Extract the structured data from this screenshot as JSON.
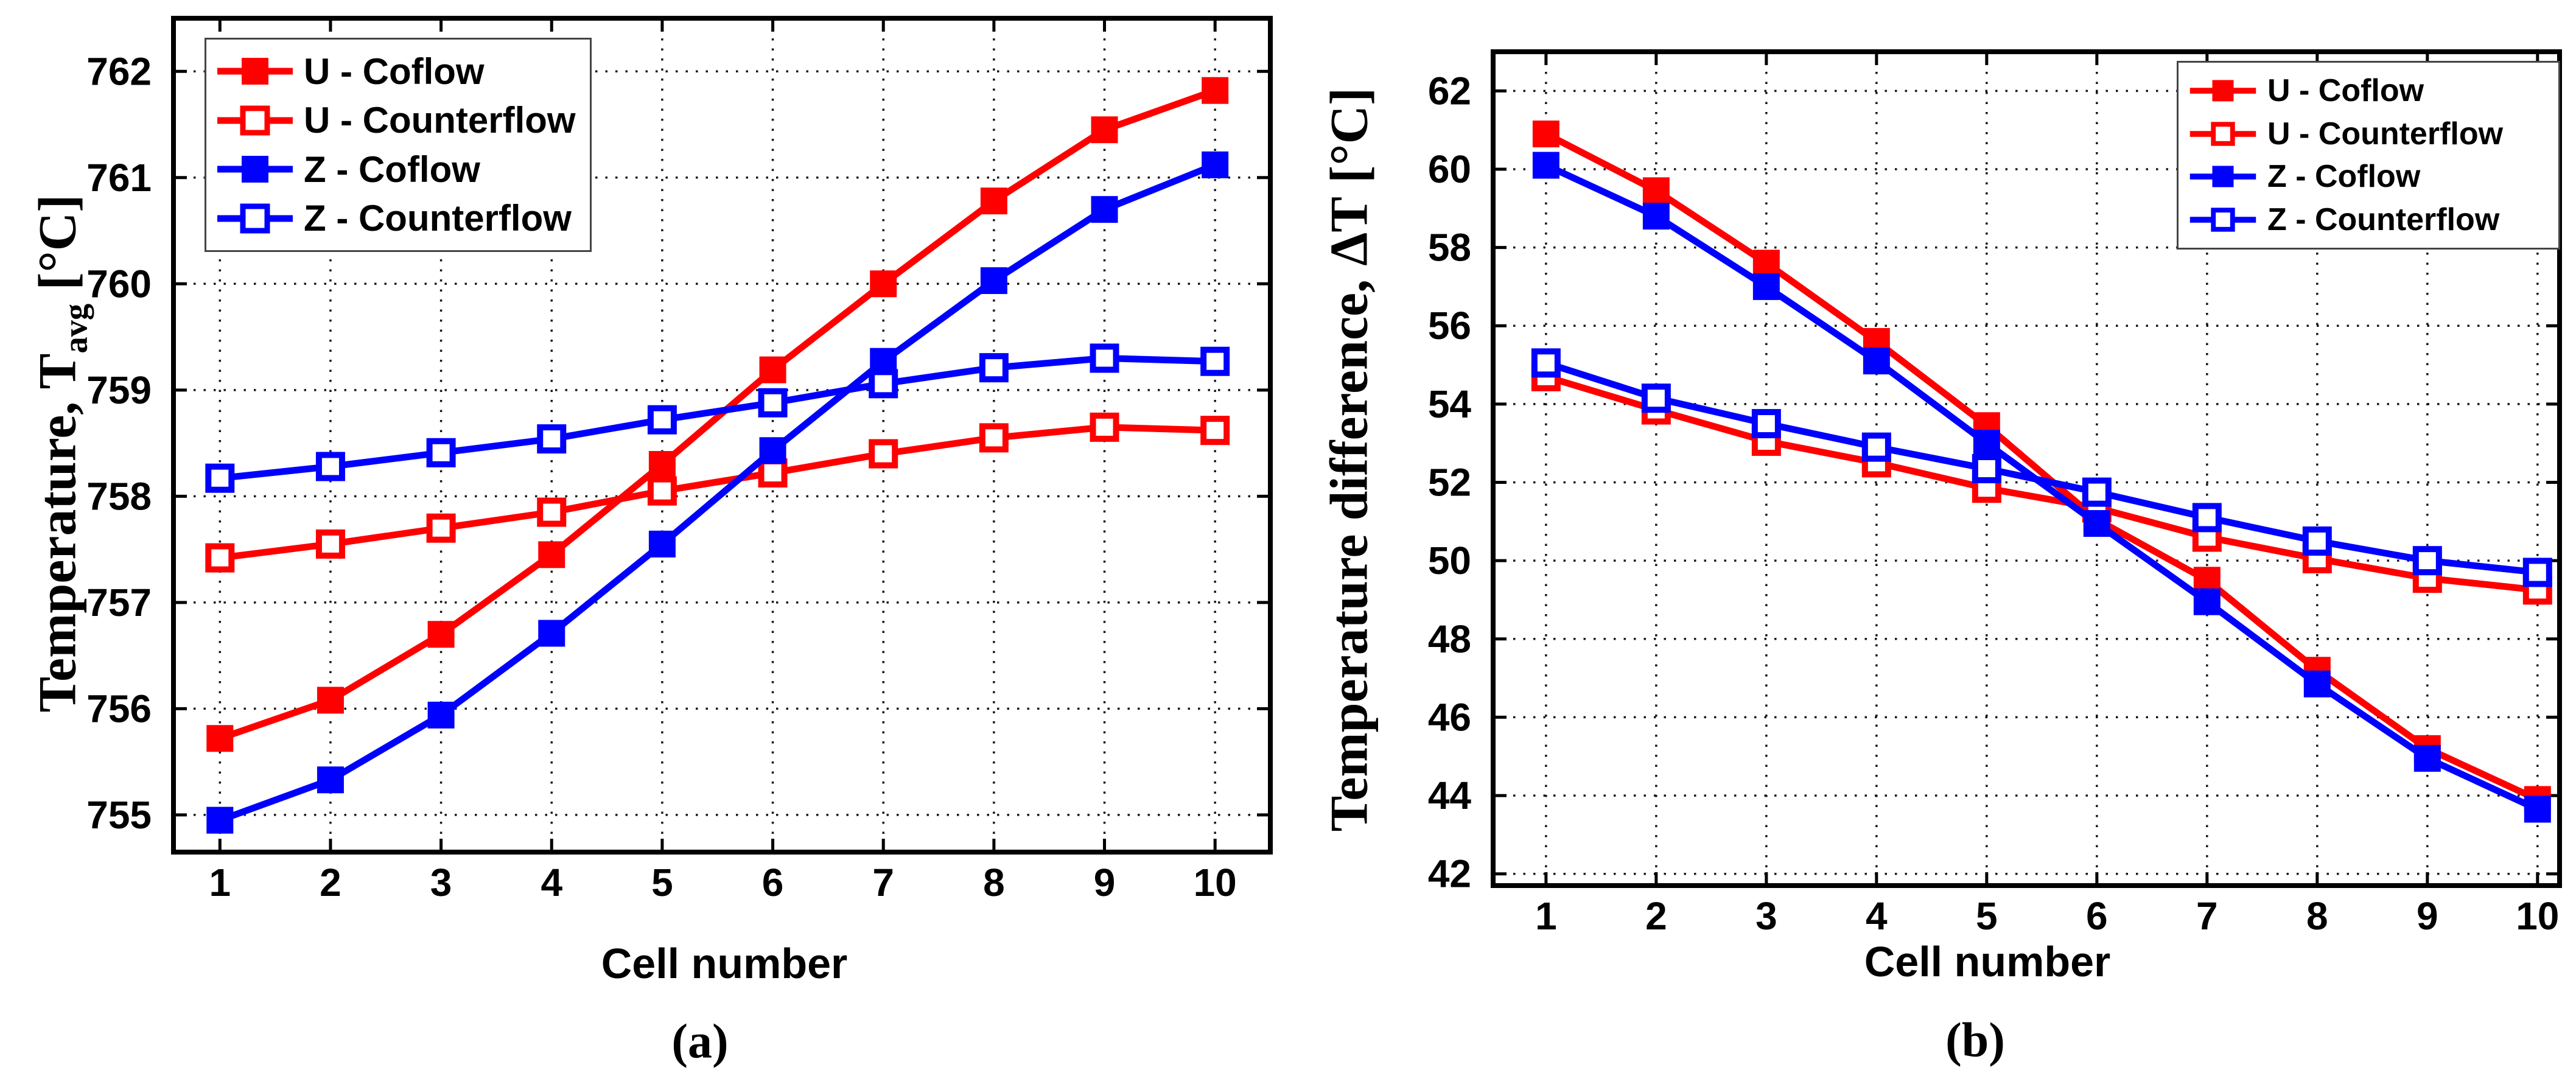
{
  "figure": {
    "background": "#ffffff",
    "grid_color": "#000000",
    "frame_color": "#000000"
  },
  "chart_data": [
    {
      "id": "a",
      "type": "line",
      "caption": "(a)",
      "xlabel": "Cell number",
      "ylabel_parts": {
        "prefix": "Temperature, T",
        "sub": "avg",
        "unit": " [°C]"
      },
      "x": [
        1,
        2,
        3,
        4,
        5,
        6,
        7,
        8,
        9,
        10
      ],
      "xticks": [
        1,
        2,
        3,
        4,
        5,
        6,
        7,
        8,
        9,
        10
      ],
      "yticks": [
        755,
        756,
        757,
        758,
        759,
        760,
        761,
        762
      ],
      "xlim": [
        0.58,
        10.5
      ],
      "ylim": [
        754.65,
        762.5
      ],
      "grid": true,
      "legend_position": "top-left",
      "series": [
        {
          "name": "U - Coflow",
          "color": "#ff0000",
          "marker": "filled",
          "values": [
            755.72,
            756.08,
            756.7,
            757.45,
            758.3,
            759.19,
            760.0,
            760.78,
            761.45,
            761.82
          ]
        },
        {
          "name": "U - Counterflow",
          "color": "#ff0000",
          "marker": "open",
          "values": [
            757.42,
            757.55,
            757.7,
            757.85,
            758.05,
            758.22,
            758.4,
            758.55,
            758.65,
            758.62
          ]
        },
        {
          "name": "Z - Coflow",
          "color": "#0000ff",
          "marker": "filled",
          "values": [
            754.95,
            755.33,
            755.94,
            756.71,
            757.55,
            758.43,
            759.27,
            760.03,
            760.7,
            761.12
          ]
        },
        {
          "name": "Z - Counterflow",
          "color": "#0000ff",
          "marker": "open",
          "values": [
            758.17,
            758.28,
            758.41,
            758.54,
            758.72,
            758.88,
            759.06,
            759.21,
            759.3,
            759.27
          ]
        }
      ]
    },
    {
      "id": "b",
      "type": "line",
      "caption": "(b)",
      "xlabel": "Cell number",
      "ylabel_parts": {
        "prefix": "Temperature difference, ΔT",
        "sub": "",
        "unit": "  [°C]"
      },
      "x": [
        1,
        2,
        3,
        4,
        5,
        6,
        7,
        8,
        9,
        10
      ],
      "xticks": [
        1,
        2,
        3,
        4,
        5,
        6,
        7,
        8,
        9,
        10
      ],
      "yticks": [
        42,
        44,
        46,
        48,
        50,
        52,
        54,
        56,
        58,
        60,
        62
      ],
      "xlim": [
        0.52,
        10.2
      ],
      "ylim": [
        41.7,
        63.0
      ],
      "grid": true,
      "legend_position": "top-right",
      "series": [
        {
          "name": "U - Coflow",
          "color": "#ff0000",
          "marker": "filled",
          "values": [
            60.9,
            59.45,
            57.6,
            55.6,
            53.45,
            51.05,
            49.5,
            47.2,
            45.2,
            43.9
          ]
        },
        {
          "name": "U - Counterflow",
          "color": "#ff0000",
          "marker": "open",
          "values": [
            54.7,
            53.85,
            53.05,
            52.5,
            51.85,
            51.35,
            50.6,
            50.05,
            49.55,
            49.25
          ]
        },
        {
          "name": "Z - Coflow",
          "color": "#0000ff",
          "marker": "filled",
          "values": [
            60.1,
            58.8,
            57.0,
            55.1,
            53.0,
            50.95,
            48.95,
            46.85,
            44.95,
            43.65
          ]
        },
        {
          "name": "Z - Counterflow",
          "color": "#0000ff",
          "marker": "open",
          "values": [
            55.05,
            54.15,
            53.5,
            52.9,
            52.35,
            51.75,
            51.1,
            50.5,
            50.0,
            49.7
          ]
        }
      ]
    }
  ]
}
